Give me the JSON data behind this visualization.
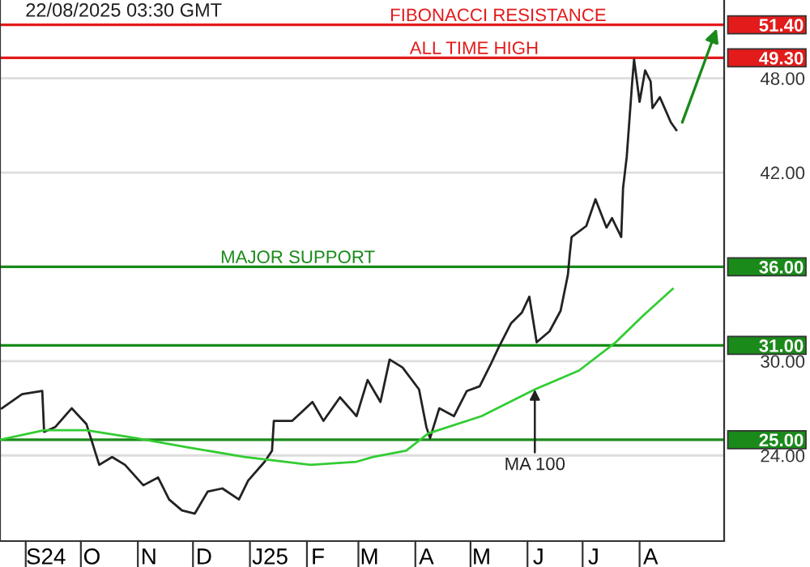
{
  "chart_data": {
    "type": "line",
    "annotations": [
      "22/08/2025 03:30 GMT",
      {
        "text": "FIBONACCI RESISTANCE",
        "x": "2025-05-16",
        "y": 51.4
      },
      {
        "text": "ALL TIME HIGH",
        "x": "2025-05-03",
        "y": 49.3
      },
      {
        "text": "MAJOR SUPPORT",
        "x": "2025-01-27",
        "y": 36
      },
      {
        "text": "MA 100",
        "x": "2025-06-05",
        "y": 28.2
      }
    ],
    "series": [
      {
        "color": "#222222",
        "x": [
          "2024-08-19",
          "2024-08-30",
          "2024-09-10",
          "2024-09-11",
          "2024-09-17",
          "2024-09-26",
          "2024-10-04",
          "2024-10-11",
          "2024-10-18",
          "2024-10-25",
          "2024-11-04",
          "2024-11-12",
          "2024-11-18",
          "2024-11-25",
          "2024-12-02",
          "2024-12-09",
          "2024-12-17",
          "2024-12-26",
          "2024-12-31",
          "2025-01-09",
          "2025-01-13",
          "2025-01-14",
          "2025-01-24",
          "2025-02-04",
          "2025-02-10",
          "2025-02-19",
          "2025-02-28",
          "2025-03-06",
          "2025-03-13",
          "2025-03-18",
          "2025-03-25",
          "2025-04-03",
          "2025-04-07",
          "2025-04-09",
          "2025-04-14",
          "2025-04-22",
          "2025-04-29",
          "2025-05-06",
          "2025-05-12",
          "2025-05-16",
          "2025-05-23",
          "2025-05-29",
          "2025-06-02",
          "2025-06-06",
          "2025-06-13",
          "2025-06-19",
          "2025-06-23",
          "2025-06-24",
          "2025-06-25",
          "2025-07-03",
          "2025-07-08",
          "2025-07-14",
          "2025-07-17",
          "2025-07-22",
          "2025-07-23",
          "2025-07-25",
          "2025-07-28",
          "2025-07-29",
          "2025-08-01",
          "2025-08-04",
          "2025-08-07",
          "2025-08-08",
          "2025-08-12",
          "2025-08-18",
          "2025-08-21"
        ],
        "values": [
          27.0,
          27.9,
          28.1,
          25.5,
          25.8,
          27.0,
          26.0,
          23.4,
          23.9,
          23.4,
          22.1,
          22.6,
          21.2,
          20.5,
          20.3,
          21.7,
          21.9,
          21.2,
          22.4,
          23.6,
          24.3,
          26.2,
          26.2,
          27.4,
          26.2,
          27.7,
          26.5,
          28.8,
          27.4,
          30.1,
          29.6,
          28.2,
          25.8,
          25.1,
          27.0,
          26.5,
          28.1,
          28.4,
          29.8,
          30.8,
          32.4,
          33.1,
          34.1,
          31.2,
          31.9,
          33.2,
          35.5,
          36.8,
          37.9,
          38.6,
          40.3,
          38.5,
          39.1,
          37.9,
          41.0,
          43.0,
          47.8,
          49.2,
          46.5,
          48.5,
          47.8,
          46.1,
          46.8,
          45.2,
          44.7
        ]
      },
      {
        "color": "#33cc33",
        "x": [
          "2024-08-18",
          "2024-09-11",
          "2024-10-04",
          "2024-10-31",
          "2024-11-29",
          "2024-12-29",
          "2025-02-03",
          "2025-02-28",
          "2025-03-09",
          "2025-03-27",
          "2025-04-08",
          "2025-05-07",
          "2025-06-05",
          "2025-06-29",
          "2025-07-19",
          "2025-08-03",
          "2025-08-19"
        ],
        "values": [
          25.0,
          25.6,
          25.6,
          25.1,
          24.5,
          23.9,
          23.4,
          23.6,
          23.9,
          24.3,
          25.4,
          26.5,
          28.2,
          29.4,
          31.2,
          32.9,
          34.6
        ]
      }
    ],
    "xlim": [
      "2024-08-18",
      "2025-09-16"
    ],
    "xticks": [
      {
        "value": "2024-09-01",
        "label": null
      },
      {
        "value": "2024-10-01",
        "label": null
      },
      {
        "value": "2024-11-01",
        "label": null
      },
      {
        "value": "2024-12-01",
        "label": null
      },
      {
        "value": "2025-01-01",
        "label": null
      },
      {
        "value": "2025-02-01",
        "label": null
      },
      {
        "value": "2025-03-01",
        "label": null
      },
      {
        "value": "2025-04-01",
        "label": null
      },
      {
        "value": "2025-05-01",
        "label": null
      },
      {
        "value": "2025-06-01",
        "label": null
      },
      {
        "value": "2025-07-01",
        "label": null
      },
      {
        "value": "2025-08-01",
        "label": null
      },
      {
        "value": "2024-09-12",
        "label": "S24"
      },
      {
        "value": "2024-10-07",
        "label": "O"
      },
      {
        "value": "2024-11-07",
        "label": "N"
      },
      {
        "value": "2024-12-07",
        "label": "D"
      },
      {
        "value": "2025-01-12",
        "label": "J25"
      },
      {
        "value": "2025-02-07",
        "label": "F"
      },
      {
        "value": "2025-03-07",
        "label": "M"
      },
      {
        "value": "2025-04-07",
        "label": "A"
      },
      {
        "value": "2025-05-07",
        "label": "M"
      },
      {
        "value": "2025-06-07",
        "label": "J"
      },
      {
        "value": "2025-07-07",
        "label": "J"
      },
      {
        "value": "2025-08-07",
        "label": "A"
      }
    ],
    "ylim": [
      18.55,
      52.98
    ],
    "yticks": [
      {
        "value": 24,
        "label": "24.00"
      },
      {
        "value": 30,
        "label": "30.00"
      },
      {
        "value": 42,
        "label": "42.00"
      },
      {
        "value": 48,
        "label": "48.00"
      }
    ],
    "ref_lines": [
      {
        "axis": "y",
        "value": 51.4,
        "label": "51.40",
        "color": "#e31b1b"
      },
      {
        "axis": "y",
        "value": 49.3,
        "label": "49.30",
        "color": "#e31b1b"
      },
      {
        "axis": "y",
        "value": 36,
        "label": "36.00",
        "color": "#1a8a1a"
      },
      {
        "axis": "y",
        "value": 31,
        "label": "31.00",
        "color": "#1a8a1a"
      },
      {
        "axis": "y",
        "value": 25,
        "label": "25.00",
        "color": "#1a8a1a"
      }
    ],
    "grid": "y",
    "marker": "none",
    "line_style": "solid"
  }
}
